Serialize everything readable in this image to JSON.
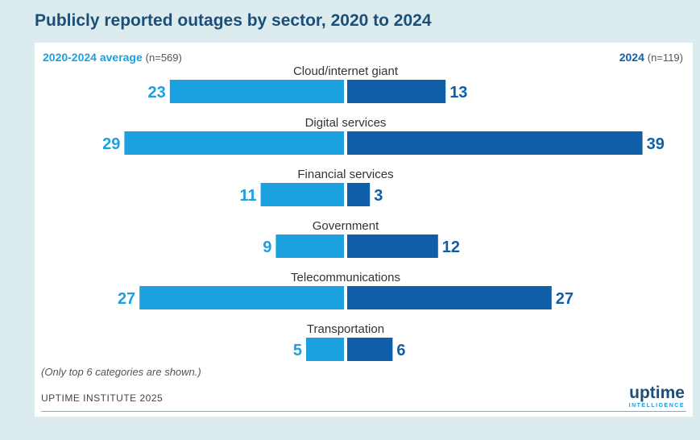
{
  "title": "Publicly reported outages by sector, 2020 to 2024",
  "legend": {
    "left_label": "2020-2024 average",
    "left_n": "(n=569)",
    "right_label": "2024",
    "right_n": "(n=119)"
  },
  "chart_data": {
    "type": "bar",
    "orientation": "horizontal-diverging",
    "categories": [
      "Cloud/internet giant",
      "Digital services",
      "Financial services",
      "Government",
      "Telecommunications",
      "Transportation"
    ],
    "series": [
      {
        "name": "2020-2024 average",
        "values": [
          23,
          29,
          11,
          9,
          27,
          5
        ],
        "color": "#1ba1df",
        "side": "left"
      },
      {
        "name": "2024",
        "values": [
          13,
          39,
          3,
          12,
          27,
          6
        ],
        "color": "#0f5fa8",
        "side": "right"
      }
    ],
    "grid": false
  },
  "footnote": "(Only top 6 categories are shown.)",
  "source": "UPTIME INSTITUTE 2025",
  "logo": {
    "word": "uptime",
    "sub": "INTELLIGENCE"
  }
}
